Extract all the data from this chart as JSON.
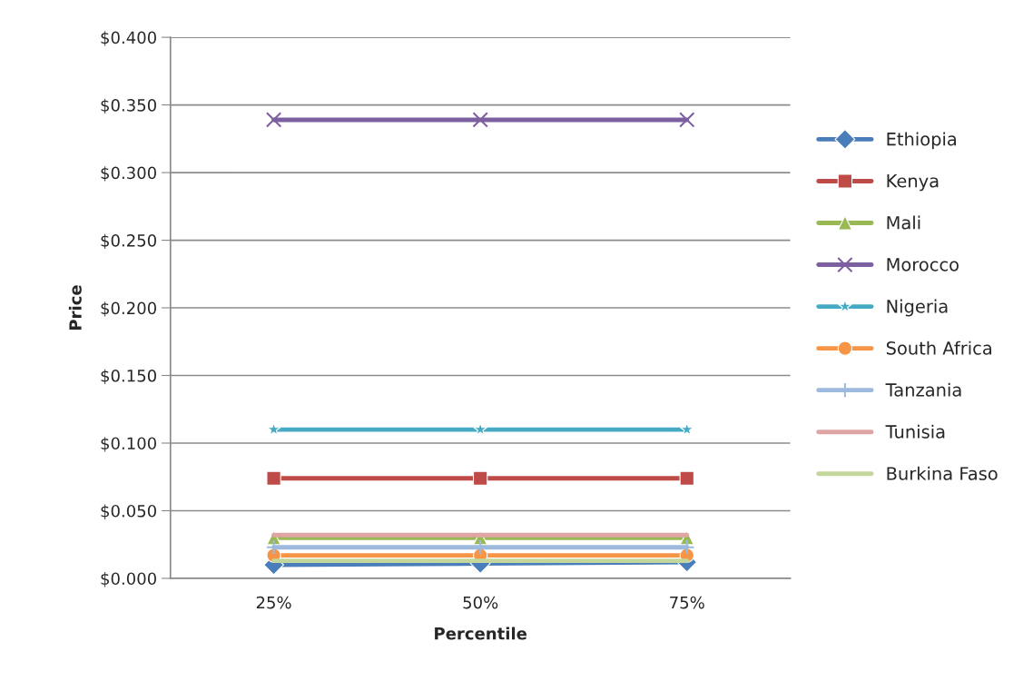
{
  "chart_data": {
    "type": "line",
    "xlabel": "Percentile",
    "ylabel": "Price",
    "categories": [
      "25%",
      "50%",
      "75%"
    ],
    "ylim": [
      0,
      0.4
    ],
    "yticks": [
      {
        "value": 0,
        "label": "$0.000"
      },
      {
        "value": 0.05,
        "label": "$0.050"
      },
      {
        "value": 0.1,
        "label": "$0.100"
      },
      {
        "value": 0.15,
        "label": "$0.150"
      },
      {
        "value": 0.2,
        "label": "$0.200"
      },
      {
        "value": 0.25,
        "label": "$0.250"
      },
      {
        "value": 0.3,
        "label": "$0.300"
      },
      {
        "value": 0.35,
        "label": "$0.350"
      },
      {
        "value": 0.4,
        "label": "$0.400"
      }
    ],
    "grid": "y",
    "legend": "right",
    "series": [
      {
        "name": "Ethiopia",
        "color": "#4a7ebb",
        "marker": "diamond",
        "values": [
          0.01,
          0.011,
          0.012
        ]
      },
      {
        "name": "Kenya",
        "color": "#be4b48",
        "marker": "square",
        "values": [
          0.074,
          0.074,
          0.074
        ]
      },
      {
        "name": "Mali",
        "color": "#98b954",
        "marker": "triangle",
        "values": [
          0.03,
          0.03,
          0.03
        ]
      },
      {
        "name": "Morocco",
        "color": "#7d60a0",
        "marker": "cross",
        "values": [
          0.339,
          0.339,
          0.339
        ]
      },
      {
        "name": "Nigeria",
        "color": "#46aac5",
        "marker": "star",
        "values": [
          0.11,
          0.11,
          0.11
        ]
      },
      {
        "name": "South Africa",
        "color": "#f69546",
        "marker": "circle",
        "values": [
          0.017,
          0.017,
          0.017
        ]
      },
      {
        "name": "Tanzania",
        "color": "#9db9dd",
        "marker": "plus",
        "values": [
          0.023,
          0.023,
          0.023
        ]
      },
      {
        "name": "Tunisia",
        "color": "#dea5a4",
        "marker": "none",
        "values": [
          0.032,
          0.032,
          0.032
        ]
      },
      {
        "name": "Burkina Faso",
        "color": "#c3d69b",
        "marker": "none",
        "values": [
          0.013,
          0.013,
          0.013
        ]
      }
    ]
  }
}
